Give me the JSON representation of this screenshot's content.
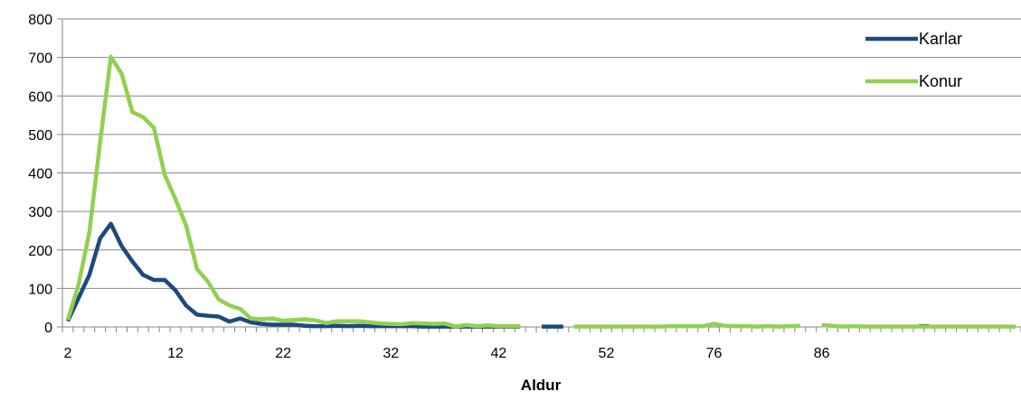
{
  "chart_data": {
    "type": "line",
    "xlabel": "Aldur",
    "ylabel": "",
    "ylim": [
      0,
      800
    ],
    "yticks": [
      0,
      100,
      200,
      300,
      400,
      500,
      600,
      700,
      800
    ],
    "x_tick_labels": [
      "2",
      "12",
      "22",
      "32",
      "42",
      "52",
      "76",
      "86"
    ],
    "grid": "horizontal",
    "legend_position": "top-right",
    "categories": [
      "2",
      "3",
      "4",
      "5",
      "6",
      "7",
      "8",
      "9",
      "10",
      "11",
      "12",
      "13",
      "14",
      "15",
      "16",
      "17",
      "18",
      "19",
      "20",
      "21",
      "22",
      "23",
      "24",
      "25",
      "26",
      "27",
      "28",
      "29",
      "30",
      "31",
      "32",
      "33",
      "34",
      "35",
      "36",
      "37",
      "38",
      "39",
      "40",
      "41",
      "42",
      "43",
      "44",
      "45",
      "46",
      "47",
      "48",
      "49",
      "50",
      "51",
      "52",
      "53",
      "54",
      "55",
      "56",
      "57",
      "58",
      "59",
      "60",
      "61",
      "62",
      "63",
      "64",
      "65",
      "66",
      "67",
      "68",
      "69",
      "70",
      "71",
      "72",
      "73",
      "74",
      "75",
      "76",
      "77",
      "78",
      "79",
      "80",
      "81",
      "82",
      "83",
      "84",
      "85",
      "86",
      "87",
      "88",
      "89",
      "90"
    ],
    "series": [
      {
        "name": "Karlar",
        "color": "#1f497d",
        "values": [
          15,
          75,
          135,
          230,
          268,
          210,
          170,
          135,
          122,
          122,
          95,
          55,
          32,
          29,
          27,
          14,
          22,
          12,
          8,
          6,
          6,
          6,
          3,
          2,
          2,
          3,
          2,
          3,
          2,
          2,
          2,
          2,
          2,
          1,
          1,
          1,
          1,
          1,
          1,
          1,
          1,
          1,
          1,
          null,
          1,
          1,
          1,
          null,
          null,
          null,
          null,
          null,
          null,
          null,
          null,
          null,
          null,
          null,
          null,
          null,
          null,
          null,
          null,
          null,
          null,
          null,
          null,
          null,
          null,
          null,
          null,
          null,
          null,
          null,
          null,
          null,
          null,
          null,
          null,
          2,
          2,
          null,
          null,
          null,
          null,
          null,
          null,
          null,
          null
        ]
      },
      {
        "name": "Konur",
        "color": "#92d050",
        "values": [
          18,
          110,
          245,
          480,
          702,
          658,
          558,
          545,
          517,
          395,
          332,
          262,
          150,
          118,
          72,
          56,
          47,
          22,
          20,
          22,
          16,
          18,
          20,
          17,
          10,
          15,
          15,
          15,
          12,
          9,
          8,
          7,
          10,
          9,
          8,
          9,
          1,
          5,
          2,
          4,
          2,
          2,
          2,
          null,
          null,
          null,
          null,
          1,
          1,
          1,
          1,
          1,
          1,
          1,
          1,
          1,
          2,
          2,
          2,
          2,
          8,
          3,
          2,
          2,
          1,
          2,
          1,
          2,
          3,
          null,
          5,
          3,
          1,
          2,
          1,
          1,
          1,
          1,
          1,
          1,
          1,
          1,
          1,
          1,
          1,
          1,
          1,
          1,
          1
        ]
      }
    ]
  }
}
